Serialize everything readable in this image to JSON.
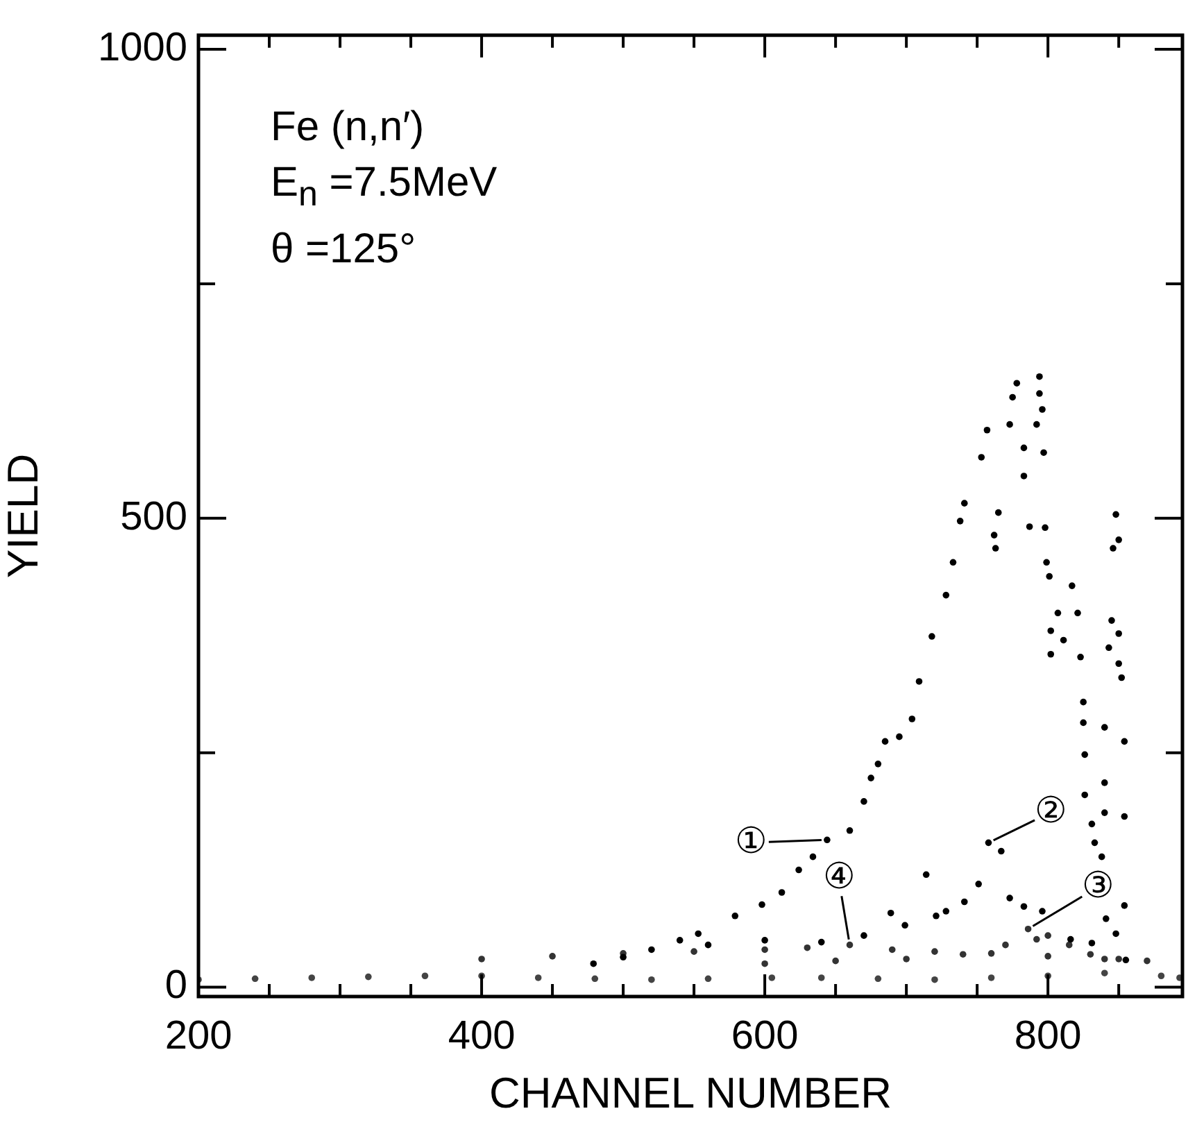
{
  "chart_data": {
    "type": "scatter",
    "xlabel": "CHANNEL NUMBER",
    "ylabel": "YIELD",
    "xlim": [
      200,
      895
    ],
    "ylim": [
      -10,
      1015
    ],
    "xticks": [
      200,
      {
        "value": 250,
        "label": null
      },
      {
        "value": 300,
        "label": null
      },
      {
        "value": 350,
        "label": null
      },
      400,
      {
        "value": 450,
        "label": null
      },
      {
        "value": 500,
        "label": null
      },
      {
        "value": 550,
        "label": null
      },
      600,
      {
        "value": 650,
        "label": null
      },
      {
        "value": 700,
        "label": null
      },
      {
        "value": 750,
        "label": null
      },
      800,
      {
        "value": 850,
        "label": null
      }
    ],
    "yticks": [
      0,
      {
        "value": 250,
        "label": null
      },
      500,
      {
        "value": 750,
        "label": null
      },
      1000
    ],
    "marker": "circle",
    "legend": false,
    "series": [
      {
        "color": "#000000",
        "x": [
          479,
          500,
          520,
          540,
          553,
          579,
          598,
          612,
          624,
          634,
          644,
          660,
          670,
          675,
          680,
          685,
          695,
          704,
          709,
          718,
          728,
          733,
          738,
          741,
          753,
          757,
          762,
          763,
          765,
          773,
          775,
          778,
          783,
          783,
          787,
          792,
          794,
          794,
          796,
          797,
          798,
          799,
          801,
          802,
          802,
          807,
          811,
          817,
          821,
          823,
          825,
          825,
          826,
          826,
          831,
          833,
          838,
          840,
          840,
          840,
          843,
          845,
          846,
          848,
          850,
          850,
          850,
          852,
          854,
          854,
          854,
          855
        ],
        "values": [
          25,
          32,
          40,
          50,
          57,
          76,
          88,
          101,
          125,
          139,
          157,
          167,
          198,
          223,
          238,
          262,
          267,
          286,
          326,
          374,
          418,
          453,
          497,
          516,
          565,
          594,
          482,
          468,
          506,
          600,
          629,
          644,
          575,
          545,
          491,
          600,
          651,
          633,
          616,
          570,
          490,
          453,
          438,
          380,
          355,
          399,
          370,
          428,
          399,
          352,
          304,
          282,
          248,
          205,
          174,
          154,
          139,
          277,
          218,
          186,
          362,
          391,
          468,
          504,
          477,
          377,
          345,
          330,
          262,
          182,
          87,
          29
        ]
      },
      {
        "color": "#000000",
        "x": [
          560,
          600,
          640,
          670,
          689,
          699,
          714,
          721,
          728,
          741,
          751,
          758,
          767,
          773,
          783,
          796,
          816,
          831,
          841,
          848
        ],
        "values": [
          45,
          50,
          48,
          55,
          79,
          66,
          120,
          76,
          81,
          91,
          110,
          154,
          145,
          95,
          86,
          81,
          51,
          47,
          73,
          57
        ]
      },
      {
        "color": "#333333",
        "x": [
          600,
          650,
          700,
          740,
          770,
          786,
          792,
          800,
          815,
          830,
          850
        ],
        "values": [
          25,
          28,
          30,
          35,
          45,
          62,
          51,
          55,
          45,
          35,
          30
        ]
      },
      {
        "color": "#333333",
        "x": [
          400,
          450,
          500,
          550,
          600,
          630,
          660,
          690,
          720,
          760,
          800,
          840,
          870
        ],
        "values": [
          30,
          33,
          36,
          38,
          40,
          42,
          45,
          40,
          38,
          36,
          33,
          30,
          28
        ]
      },
      {
        "color": "#444444",
        "x": [
          200,
          240,
          280,
          320,
          360,
          400,
          440,
          480,
          520,
          560,
          605,
          640,
          680,
          720,
          760,
          800,
          840,
          880,
          893
        ],
        "values": [
          8,
          9,
          10,
          11,
          12,
          12,
          10,
          9,
          8,
          9,
          10,
          10,
          9,
          8,
          10,
          12,
          15,
          12,
          10
        ]
      }
    ],
    "annotations": [
      "Fe (n,n′)",
      "E$_{n}$ =7.5MeV",
      "θ =125°",
      {
        "text": "①",
        "x": 644,
        "y": 157
      },
      {
        "text": "②",
        "x": 758,
        "y": 154
      },
      {
        "text": "③",
        "x": 786,
        "y": 62
      },
      {
        "text": "④",
        "x": 660,
        "y": 45
      }
    ]
  }
}
